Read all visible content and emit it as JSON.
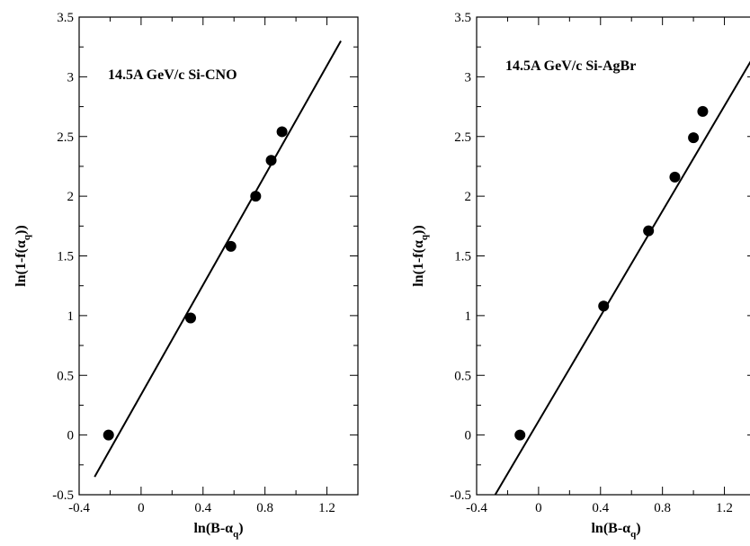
{
  "chart_data": [
    {
      "type": "scatter",
      "annotation": "14.5A GeV/c Si-CNO",
      "xlabel": {
        "main": "ln(B-α",
        "sub": "q",
        "tail": ")"
      },
      "ylabel": {
        "main": "ln(1-f(α",
        "sub": "q",
        "tail": "))"
      },
      "xlim": [
        -0.4,
        1.4
      ],
      "ylim": [
        -0.5,
        3.5
      ],
      "xticks": [
        -0.4,
        0,
        0.4,
        0.8,
        1.2
      ],
      "xtick_labels": [
        "-0.4",
        "0",
        "0.4",
        "0.8",
        "1.2"
      ],
      "yticks": [
        -0.5,
        0,
        0.5,
        1,
        1.5,
        2,
        2.5,
        3,
        3.5
      ],
      "ytick_labels": [
        "-0.5",
        "0",
        "0.5",
        "1",
        "1.5",
        "2",
        "2.5",
        "3",
        "3.5"
      ],
      "grid": false,
      "series": [
        {
          "points": [
            [
              -0.21,
              0.0
            ],
            [
              0.32,
              0.98
            ],
            [
              0.58,
              1.58
            ],
            [
              0.74,
              2.0
            ],
            [
              0.84,
              2.3
            ],
            [
              0.91,
              2.54
            ]
          ]
        }
      ],
      "fit_line": [
        [
          -0.3,
          -0.35
        ],
        [
          1.29,
          3.3
        ]
      ]
    },
    {
      "type": "scatter",
      "annotation": "14.5A GeV/c Si-AgBr",
      "xlabel": {
        "main": "ln(B-α",
        "sub": "q",
        "tail": ")"
      },
      "ylabel": {
        "main": "ln(1-f(α",
        "sub": "q",
        "tail": "))"
      },
      "xlim": [
        -0.4,
        1.4
      ],
      "ylim": [
        -0.5,
        3.5
      ],
      "xticks": [
        -0.4,
        0,
        0.4,
        0.8,
        1.2
      ],
      "xtick_labels": [
        "-0.4",
        "0",
        "0.4",
        "0.8",
        "1.2"
      ],
      "yticks": [
        -0.5,
        0,
        0.5,
        1,
        1.5,
        2,
        2.5,
        3,
        3.5
      ],
      "ytick_labels": [
        "-0.5",
        "0",
        "0.5",
        "1",
        "1.5",
        "2",
        "2.5",
        "3",
        "3.5"
      ],
      "grid": false,
      "series": [
        {
          "points": [
            [
              -0.12,
              0.0
            ],
            [
              0.42,
              1.08
            ],
            [
              0.71,
              1.71
            ],
            [
              0.88,
              2.16
            ],
            [
              1.0,
              2.49
            ],
            [
              1.06,
              2.71
            ]
          ]
        }
      ],
      "fit_line": [
        [
          -0.28,
          -0.5
        ],
        [
          1.37,
          3.13
        ]
      ]
    }
  ]
}
